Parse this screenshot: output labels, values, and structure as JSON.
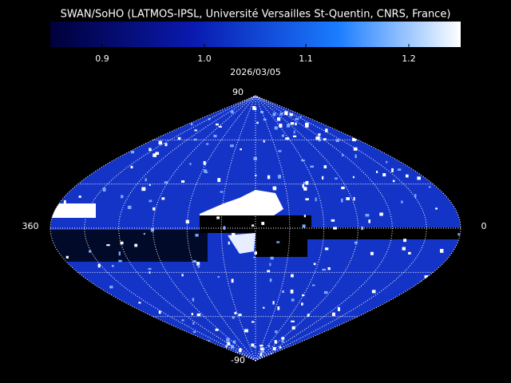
{
  "title": "SWAN/SoHO (LATMOS-IPSL, Université Versailles St-Quentin, CNRS, France)",
  "colorbar": {
    "tick_labels": [
      "0.9",
      "1.0",
      "1.1",
      "1.2"
    ]
  },
  "date": "2026/03/05",
  "map": {
    "top_label": "90",
    "bottom_label": "-90",
    "left_label": "360",
    "right_label": "0"
  }
}
